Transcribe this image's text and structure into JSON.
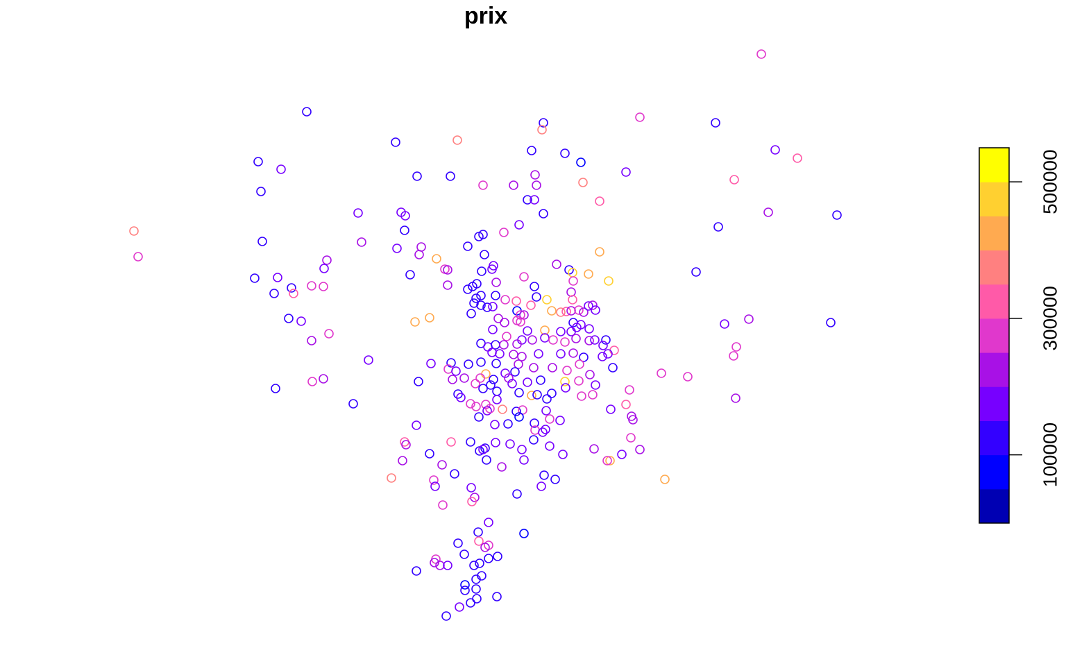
{
  "chart_data": {
    "type": "scatter",
    "title": "prix",
    "x": [
      1097,
      442,
      922,
      1031,
      783,
      781,
      570,
      659,
      1117,
      1149,
      766,
      814,
      837,
      372,
      405,
      902,
      601,
      649,
      771,
      696,
      740,
      773,
      840,
      1058,
      376,
      760,
      770,
      864,
      516,
      578,
      584,
      783,
      1107,
      1206,
      193,
      583,
      748,
      726,
      1035,
      690,
      696,
      378,
      521,
      199,
      572,
      607,
      674,
      604,
      698,
      864,
      629,
      471,
      467,
      641,
      645,
      694,
      711,
      709,
      802,
      820,
      825,
      848,
      877,
      1003,
      367,
      400,
      591,
      755,
      826,
      449,
      466,
      420,
      395,
      423,
      645,
      715,
      770,
      823,
      674,
      681,
      687,
      686,
      693,
      714,
      728,
      744,
      765,
      773,
      788,
      825,
      683,
      693,
      702,
      710,
      745,
      750,
      755,
      795,
      808,
      816,
      823,
      834,
      841,
      848,
      854,
      858,
      679,
      718,
      727,
      745,
      750,
      598,
      619,
      416,
      434,
      1044,
      1079,
      1197,
      826,
      837,
      849,
      710,
      760,
      785,
      808,
      823,
      831,
      449,
      474,
      730,
      752,
      767,
      785,
      797,
      814,
      830,
      849,
      857,
      873,
      693,
      703,
      714,
      726,
      745,
      869,
      1061,
      885,
      709,
      720,
      740,
      752,
      776,
      808,
      826,
      841,
      868,
      876,
      1057,
      531,
      621,
      650,
      675,
      693,
      715,
      747,
      769,
      796,
      817,
      835,
      883,
      646,
      657,
      700,
      728,
      742,
      953,
      991,
      669,
      692,
      711,
      733,
      760,
      779,
      814,
      834,
      850,
      603,
      466,
      450,
      652,
      685,
      707,
      738,
      858,
      397,
      696,
      716,
      748,
      766,
      774,
      795,
      815,
      838,
      854,
      907,
      1060,
      660,
      664,
      678,
      686,
      700,
      716,
      788,
      509,
      724,
      744,
      753,
      787,
      702,
      706,
      880,
      902,
      910,
      912,
      690,
      713,
      732,
      748,
      770,
      792,
      807,
      600,
      771,
      782,
      786,
      583,
      585,
      650,
      678,
      699,
      714,
      735,
      752,
      792,
      811,
      769,
      856,
      909,
      922,
      896,
      879,
      875,
      619,
      691,
      696,
      701,
      580,
      637,
      723,
      755,
      564,
      655,
      625,
      627,
      784,
      800,
      958,
      780,
      679,
      745,
      684,
      680,
      638,
      704,
      755,
      689,
      690,
      660,
      704,
      699,
      669,
      717,
      628,
      626,
      634,
      645,
      683,
      691,
      704,
      600,
      694,
      686,
      670,
      670,
      686,
      716,
      687,
      678,
      662,
      643
    ],
    "y": [
      78,
      161,
      169,
      177,
      177,
      187,
      205,
      202,
      216,
      228,
      217,
      221,
      234,
      233,
      244,
      248,
      254,
      254,
      252,
      267,
      267,
      267,
      263,
      259,
      276,
      288,
      288,
      290,
      307,
      306,
      311,
      308,
      306,
      310,
      333,
      332,
      324,
      335,
      327,
      341,
      338,
      348,
      349,
      370,
      358,
      356,
      355,
      367,
      367,
      363,
      373,
      375,
      387,
      388,
      389,
      391,
      383,
      388,
      381,
      389,
      393,
      395,
      405,
      392,
      401,
      400,
      396,
      399,
      405,
      412,
      413,
      415,
      423,
      423,
      411,
      407,
      413,
      421,
      417,
      413,
      409,
      430,
      426,
      426,
      432,
      434,
      440,
      428,
      432,
      432,
      437,
      440,
      443,
      442,
      448,
      454,
      454,
      448,
      450,
      449,
      448,
      447,
      450,
      441,
      440,
      447,
      452,
      459,
      465,
      462,
      464,
      464,
      458,
      459,
      463,
      467,
      460,
      465,
      465,
      468,
      474,
      475,
      477,
      476,
      478,
      478,
      472,
      491,
      481,
      485,
      490,
      490,
      487,
      490,
      493,
      488,
      491,
      490,
      490,
      495,
      500,
      497,
      497,
      496,
      498,
      500,
      505,
      508,
      510,
      511,
      514,
      510,
      510,
      509,
      515,
      514,
      510,
      513,
      519,
      524,
      523,
      525,
      522,
      524,
      525,
      530,
      530,
      534,
      525,
      530,
      532,
      535,
      539,
      538,
      536,
      538,
      543,
      545,
      545,
      547,
      545,
      551,
      548,
      550,
      549,
      540,
      550,
      546,
      550,
      547,
      553,
      555,
      553,
      555,
      560,
      560,
      564,
      566,
      570,
      569,
      567,
      559,
      571,
      569,
      562,
      574,
      568,
      573,
      582,
      586,
      583,
      576,
      575,
      582,
      590,
      593,
      591,
      592,
      592,
      589,
      590,
      583,
      600,
      605,
      601,
      612,
      611,
      601,
      610,
      604,
      606,
      613,
      620,
      623,
      619,
      637,
      641,
      637,
      637,
      646,
      638,
      640,
      648,
      643,
      655,
      634,
      647,
      631,
      648,
      655,
      664,
      664,
      654,
      650,
      648,
      663,
      664,
      670,
      673,
      663,
      689,
      683,
      692,
      701,
      685,
      691,
      691,
      701,
      703,
      712,
      717,
      723,
      728,
      753,
      769,
      767,
      780,
      783,
      786,
      789,
      799,
      802,
      806,
      811,
      815,
      815,
      815,
      812,
      805,
      823,
      830,
      835,
      843,
      851,
      849,
      860,
      863,
      869,
      875,
      888
    ],
    "values": [
      290000,
      110000,
      280000,
      110000,
      110000,
      360000,
      110000,
      350000,
      180000,
      320000,
      130000,
      130000,
      80000,
      120000,
      190000,
      170000,
      120000,
      110000,
      200000,
      280000,
      210000,
      210000,
      370000,
      330000,
      110000,
      130000,
      190000,
      330000,
      190000,
      170000,
      170000,
      130000,
      210000,
      130000,
      360000,
      140000,
      180000,
      270000,
      100000,
      130000,
      110000,
      130000,
      220000,
      270000,
      180000,
      210000,
      140000,
      200000,
      130000,
      420000,
      410000,
      200000,
      190000,
      260000,
      200000,
      110000,
      170000,
      150000,
      220000,
      100000,
      460000,
      440000,
      470000,
      120000,
      130000,
      180000,
      140000,
      280000,
      290000,
      250000,
      260000,
      140000,
      140000,
      320000,
      210000,
      200000,
      140000,
      210000,
      140000,
      140000,
      140000,
      140000,
      120000,
      140000,
      280000,
      330000,
      320000,
      140000,
      470000,
      300000,
      120000,
      120000,
      140000,
      180000,
      80000,
      260000,
      200000,
      400000,
      360000,
      340000,
      210000,
      260000,
      200000,
      190000,
      200000,
      180000,
      140000,
      200000,
      200000,
      270000,
      280000,
      400000,
      410000,
      140000,
      170000,
      150000,
      230000,
      110000,
      130000,
      180000,
      170000,
      170000,
      170000,
      400000,
      190000,
      180000,
      150000,
      210000,
      260000,
      270000,
      170000,
      210000,
      190000,
      290000,
      270000,
      210000,
      200000,
      190000,
      140000,
      140000,
      170000,
      140000,
      200000,
      220000,
      180000,
      290000,
      310000,
      170000,
      160000,
      200000,
      210000,
      180000,
      180000,
      210000,
      140000,
      190000,
      190000,
      290000,
      180000,
      190000,
      130000,
      120000,
      140000,
      130000,
      210000,
      200000,
      220000,
      270000,
      260000,
      140000,
      270000,
      180000,
      420000,
      170000,
      130000,
      290000,
      290000,
      200000,
      280000,
      140000,
      200000,
      180000,
      140000,
      470000,
      250000,
      200000,
      140000,
      210000,
      290000,
      200000,
      270000,
      140000,
      190000,
      190000,
      140000,
      140000,
      130000,
      140000,
      400000,
      130000,
      140000,
      170000,
      290000,
      290000,
      270000,
      210000,
      130000,
      180000,
      280000,
      280000,
      260000,
      170000,
      140000,
      140000,
      350000,
      140000,
      270000,
      180000,
      190000,
      280000,
      170000,
      300000,
      220000,
      200000,
      140000,
      150000,
      110000,
      80000,
      140000,
      260000,
      190000,
      190000,
      290000,
      170000,
      150000,
      310000,
      220000,
      320000,
      140000,
      140000,
      150000,
      150000,
      170000,
      170000,
      180000,
      140000,
      220000,
      290000,
      200000,
      180000,
      410000,
      290000,
      140000,
      140000,
      170000,
      130000,
      200000,
      210000,
      200000,
      150000,
      370000,
      140000,
      290000,
      190000,
      140000,
      140000,
      420000,
      180000,
      190000,
      120000,
      200000,
      330000,
      270000,
      190000,
      90000,
      110000,
      310000,
      120000,
      260000,
      200000,
      130000,
      130000,
      270000,
      220000,
      200000,
      190000,
      120000,
      130000,
      140000,
      120000,
      130000,
      140000,
      70000,
      120000,
      130000,
      120000,
      140000,
      140000,
      190000,
      110000
    ],
    "xlim": [
      150,
      1250
    ],
    "ylim": [
      900,
      60
    ],
    "colorbar": {
      "ylim": [
        0,
        550000
      ],
      "yticks": [
        100000,
        300000,
        500000
      ],
      "colors": [
        "#0000B3",
        "#0000FF",
        "#3300FF",
        "#7700FF",
        "#A811E6",
        "#E038CC",
        "#FF5AA8",
        "#FF8080",
        "#FFAA50",
        "#FFD030",
        "#FFFF00"
      ]
    }
  }
}
